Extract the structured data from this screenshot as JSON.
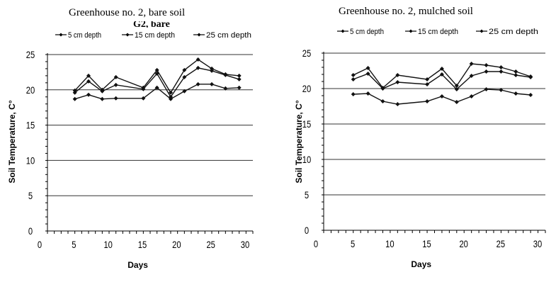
{
  "chart_data": [
    {
      "type": "line",
      "title": "Greenhouse no. 2, bare soil",
      "subtitle": "G2, bare",
      "xlabel": "Days",
      "ylabel": "Soil Temperature, C°",
      "xlim": [
        0,
        30
      ],
      "ylim": [
        0,
        25
      ],
      "xticks": [
        0,
        5,
        10,
        15,
        20,
        25,
        30
      ],
      "yticks": [
        0,
        5,
        10,
        15,
        20,
        25
      ],
      "grid": "horizontal",
      "legend_position": "top",
      "x": [
        4,
        6,
        8,
        10,
        14,
        16,
        18,
        20,
        22,
        24,
        26,
        28
      ],
      "series": [
        {
          "name": "5 cm depth",
          "values": [
            18.7,
            19.3,
            18.7,
            18.8,
            18.8,
            20.3,
            18.7,
            19.8,
            20.8,
            20.8,
            20.2,
            20.3
          ]
        },
        {
          "name": "15 cm depth",
          "values": [
            19.6,
            21.2,
            19.8,
            20.7,
            20.1,
            22.3,
            19.0,
            21.8,
            23.1,
            22.7,
            22.1,
            21.5
          ]
        },
        {
          "name": "25 cm depth",
          "values": [
            19.9,
            22.0,
            20.0,
            21.8,
            20.3,
            22.8,
            19.6,
            22.8,
            24.3,
            23.0,
            22.2,
            22.0
          ]
        }
      ]
    },
    {
      "type": "line",
      "title": "Greenhouse no. 2, mulched soil",
      "xlabel": "Days",
      "ylabel": "Soil Temperature, C°",
      "xlim": [
        0,
        30
      ],
      "ylim": [
        0,
        25
      ],
      "xticks": [
        0,
        5,
        10,
        15,
        20,
        25,
        30
      ],
      "yticks": [
        0,
        5,
        10,
        15,
        20,
        25
      ],
      "grid": "horizontal",
      "legend_position": "top",
      "x": [
        4,
        6,
        8,
        10,
        14,
        16,
        18,
        20,
        22,
        24,
        26,
        28
      ],
      "series": [
        {
          "name": "5 cm depth",
          "values": [
            19.2,
            19.3,
            18.2,
            17.8,
            18.2,
            18.9,
            18.1,
            18.9,
            19.9,
            19.8,
            19.3,
            19.1
          ]
        },
        {
          "name": "15 cm depth",
          "values": [
            21.3,
            22.1,
            20.0,
            20.9,
            20.6,
            22.0,
            19.9,
            21.8,
            22.4,
            22.4,
            21.9,
            21.6
          ]
        },
        {
          "name": "25 cm depth",
          "values": [
            21.9,
            22.9,
            20.1,
            21.9,
            21.3,
            22.8,
            20.4,
            23.5,
            23.3,
            23.0,
            22.4,
            21.7
          ]
        }
      ]
    }
  ]
}
